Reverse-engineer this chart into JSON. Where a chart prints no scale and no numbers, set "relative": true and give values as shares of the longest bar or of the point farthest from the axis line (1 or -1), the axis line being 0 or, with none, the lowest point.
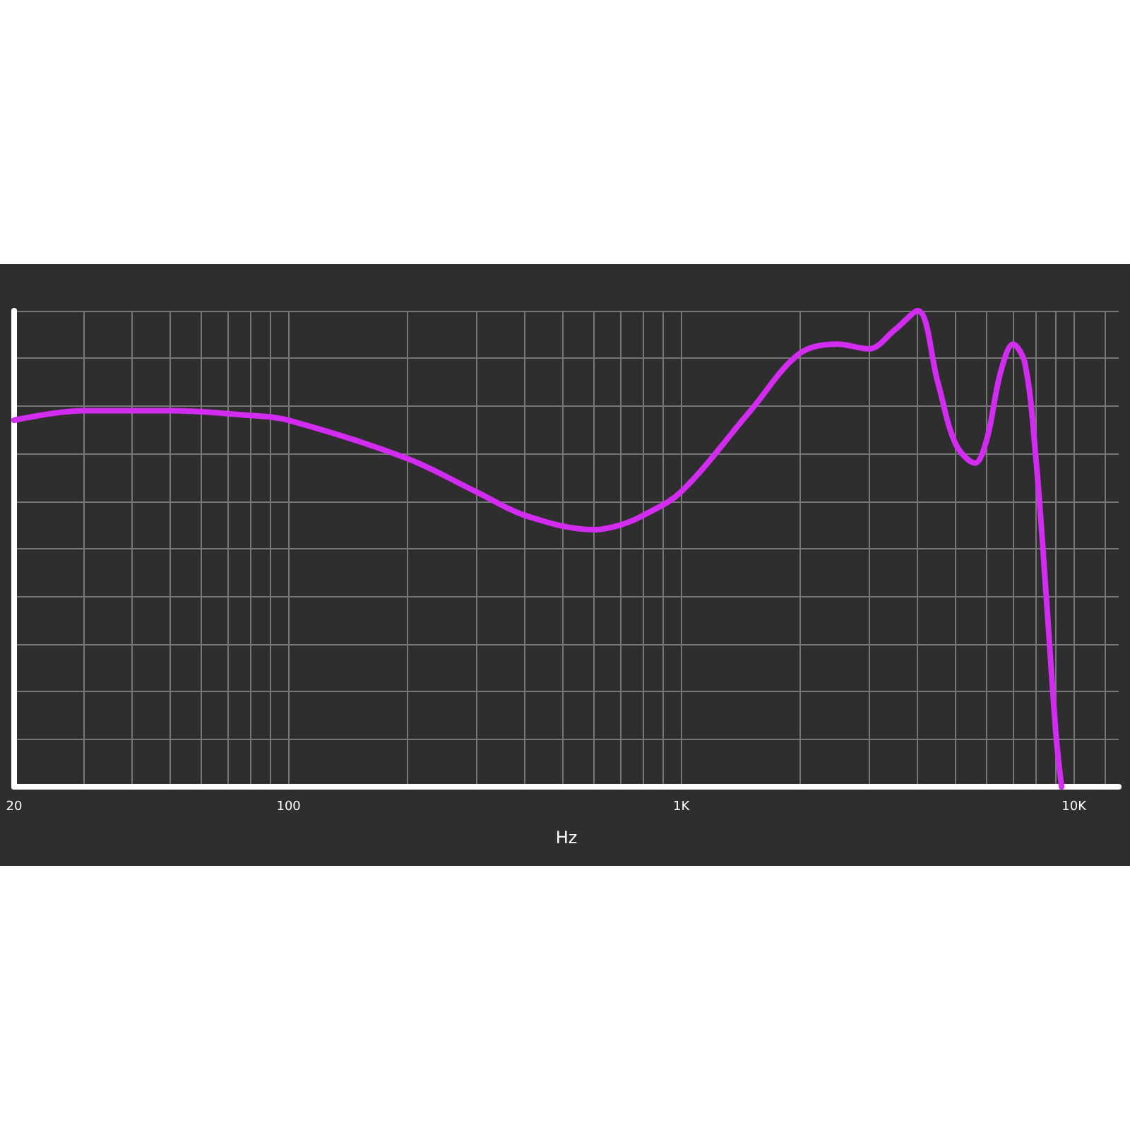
{
  "chart_data": {
    "type": "line",
    "xlabel": "Hz",
    "relative": true,
    "log": "x",
    "grid": true,
    "marker": "none",
    "line_style": "solid",
    "xlim": [
      20,
      13000
    ],
    "xticks": [
      {
        "value": 20,
        "label": "20"
      },
      {
        "value": 30,
        "label": null
      },
      {
        "value": 40,
        "label": null
      },
      {
        "value": 50,
        "label": null
      },
      {
        "value": 60,
        "label": null
      },
      {
        "value": 70,
        "label": null
      },
      {
        "value": 80,
        "label": null
      },
      {
        "value": 90,
        "label": null
      },
      {
        "value": 100,
        "label": "100"
      },
      {
        "value": 200,
        "label": null
      },
      {
        "value": 300,
        "label": null
      },
      {
        "value": 400,
        "label": null
      },
      {
        "value": 500,
        "label": null
      },
      {
        "value": 600,
        "label": null
      },
      {
        "value": 700,
        "label": null
      },
      {
        "value": 800,
        "label": null
      },
      {
        "value": 900,
        "label": null
      },
      {
        "value": 1000,
        "label": "1K"
      },
      {
        "value": 2000,
        "label": null
      },
      {
        "value": 3000,
        "label": null
      },
      {
        "value": 4000,
        "label": null
      },
      {
        "value": 5000,
        "label": null
      },
      {
        "value": 6000,
        "label": null
      },
      {
        "value": 7000,
        "label": null
      },
      {
        "value": 8000,
        "label": null
      },
      {
        "value": 9000,
        "label": null
      },
      {
        "value": 10000,
        "label": "10K"
      },
      {
        "value": 12000,
        "label": null
      }
    ],
    "series": [
      {
        "color": "#d22cf0",
        "x": [
          20,
          30,
          50,
          80,
          100,
          200,
          300,
          400,
          600,
          700,
          800,
          1000,
          1500,
          2000,
          2500,
          3000,
          3500,
          4000,
          4500,
          5000,
          5600,
          6000,
          6500,
          7000,
          7500,
          8000,
          8500,
          9000,
          9300
        ],
        "values": [
          0.77,
          0.79,
          0.79,
          0.78,
          0.77,
          0.69,
          0.62,
          0.57,
          0.54,
          0.55,
          0.57,
          0.62,
          0.79,
          0.91,
          0.93,
          0.92,
          0.96,
          1,
          0.85,
          0.72,
          0.68,
          0.73,
          0.87,
          0.93,
          0.89,
          0.69,
          0.4,
          0.11,
          0
        ]
      }
    ]
  }
}
